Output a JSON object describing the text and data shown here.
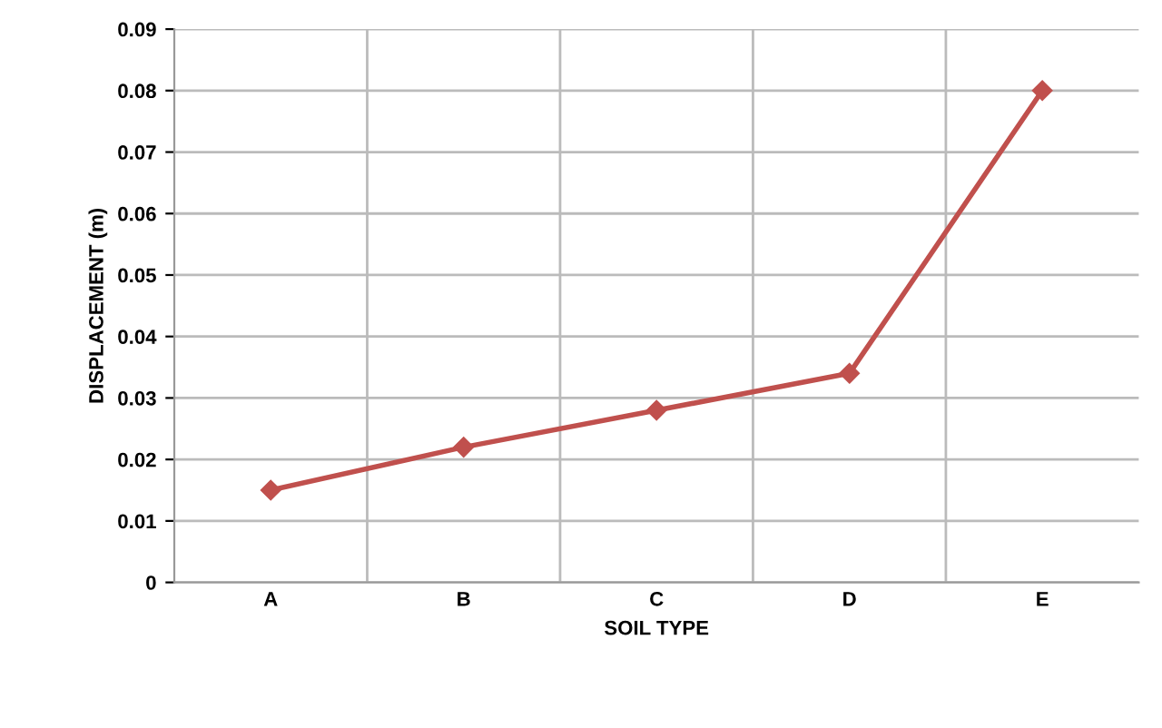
{
  "chart_data": {
    "type": "line",
    "xlabel": "SOIL TYPE",
    "ylabel": "DISPLACEMENT (m)",
    "categories": [
      "A",
      "B",
      "C",
      "D",
      "E"
    ],
    "series": [
      {
        "color": "#c0504d",
        "values": [
          0.015,
          0.022,
          0.028,
          0.034,
          0.08
        ]
      }
    ],
    "ylim": [
      0,
      0.09
    ],
    "yticks": [
      0,
      0.01,
      0.02,
      0.03,
      0.04,
      0.05,
      0.06,
      0.07,
      0.08,
      0.09
    ],
    "grid": true,
    "marker": "diamond",
    "line_style": "solid"
  }
}
